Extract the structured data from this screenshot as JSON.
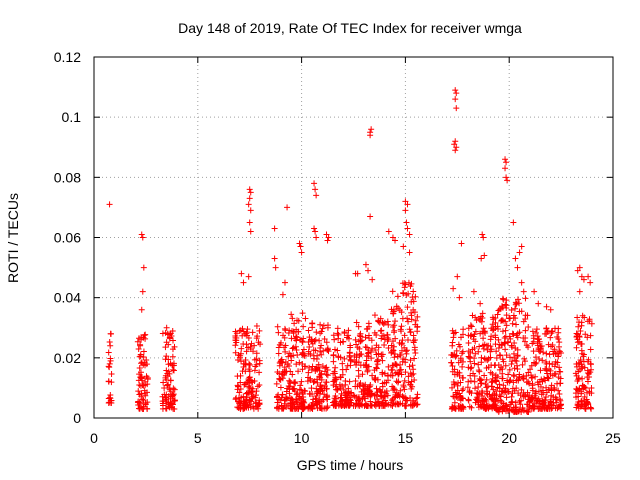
{
  "chart_data": {
    "type": "scatter",
    "title": "Day 148 of 2019, Rate Of TEC Index for receiver wmga",
    "xlabel": "GPS time / hours",
    "ylabel": "ROTI / TECUs",
    "xlim": [
      0,
      25
    ],
    "ylim": [
      0,
      0.12
    ],
    "xticks": [
      "0",
      "5",
      "10",
      "15",
      "20",
      "25"
    ],
    "yticks": [
      "0",
      "0.02",
      "0.04",
      "0.06",
      "0.08",
      "0.1",
      "0.12"
    ],
    "grid": true,
    "marker": "+",
    "color": "#ff0000",
    "clusters": [
      {
        "x": [
          0.7,
          0.85
        ],
        "y": [
          0.005,
          0.028
        ]
      },
      {
        "x": [
          2.1,
          2.6
        ],
        "y": [
          0.003,
          0.028
        ]
      },
      {
        "x": [
          3.3,
          3.9
        ],
        "y": [
          0.003,
          0.03
        ]
      },
      {
        "x": [
          6.8,
          8.0
        ],
        "y": [
          0.003,
          0.032
        ]
      },
      {
        "x": [
          8.8,
          10.2
        ],
        "y": [
          0.003,
          0.035
        ]
      },
      {
        "x": [
          10.3,
          11.3
        ],
        "y": [
          0.003,
          0.033
        ]
      },
      {
        "x": [
          11.5,
          12.4
        ],
        "y": [
          0.004,
          0.03
        ]
      },
      {
        "x": [
          12.5,
          13.4
        ],
        "y": [
          0.004,
          0.032
        ]
      },
      {
        "x": [
          13.5,
          14.2
        ],
        "y": [
          0.004,
          0.035
        ]
      },
      {
        "x": [
          14.3,
          15.6
        ],
        "y": [
          0.004,
          0.045
        ]
      },
      {
        "x": [
          17.2,
          17.8
        ],
        "y": [
          0.003,
          0.03
        ]
      },
      {
        "x": [
          18.0,
          19.4
        ],
        "y": [
          0.003,
          0.035
        ]
      },
      {
        "x": [
          19.4,
          21.0
        ],
        "y": [
          0.002,
          0.04
        ]
      },
      {
        "x": [
          21.0,
          22.5
        ],
        "y": [
          0.003,
          0.03
        ]
      },
      {
        "x": [
          23.2,
          24.0
        ],
        "y": [
          0.003,
          0.035
        ]
      }
    ],
    "points": [
      [
        0.75,
        0.071
      ],
      [
        0.8,
        0.028
      ],
      [
        0.78,
        0.024
      ],
      [
        0.8,
        0.019
      ],
      [
        2.3,
        0.061
      ],
      [
        2.35,
        0.06
      ],
      [
        2.4,
        0.05
      ],
      [
        2.35,
        0.042
      ],
      [
        2.3,
        0.036
      ],
      [
        3.5,
        0.03
      ],
      [
        3.55,
        0.028
      ],
      [
        7.1,
        0.048
      ],
      [
        7.2,
        0.045
      ],
      [
        7.5,
        0.076
      ],
      [
        7.55,
        0.075
      ],
      [
        7.5,
        0.073
      ],
      [
        7.45,
        0.071
      ],
      [
        7.55,
        0.069
      ],
      [
        7.5,
        0.065
      ],
      [
        7.55,
        0.062
      ],
      [
        7.45,
        0.047
      ],
      [
        8.7,
        0.063
      ],
      [
        8.7,
        0.053
      ],
      [
        8.75,
        0.05
      ],
      [
        9.3,
        0.07
      ],
      [
        9.2,
        0.045
      ],
      [
        9.1,
        0.041
      ],
      [
        9.9,
        0.058
      ],
      [
        9.95,
        0.057
      ],
      [
        10.0,
        0.055
      ],
      [
        10.6,
        0.078
      ],
      [
        10.65,
        0.076
      ],
      [
        10.7,
        0.074
      ],
      [
        10.6,
        0.063
      ],
      [
        10.65,
        0.062
      ],
      [
        10.7,
        0.06
      ],
      [
        11.2,
        0.061
      ],
      [
        11.3,
        0.06
      ],
      [
        11.25,
        0.059
      ],
      [
        12.6,
        0.048
      ],
      [
        12.7,
        0.048
      ],
      [
        13.3,
        0.095
      ],
      [
        13.35,
        0.096
      ],
      [
        13.3,
        0.094
      ],
      [
        13.3,
        0.067
      ],
      [
        13.1,
        0.051
      ],
      [
        13.2,
        0.049
      ],
      [
        13.4,
        0.046
      ],
      [
        14.2,
        0.062
      ],
      [
        14.4,
        0.06
      ],
      [
        14.5,
        0.059
      ],
      [
        15.0,
        0.072
      ],
      [
        15.1,
        0.071
      ],
      [
        15.0,
        0.069
      ],
      [
        15.05,
        0.065
      ],
      [
        15.1,
        0.063
      ],
      [
        15.2,
        0.061
      ],
      [
        14.9,
        0.057
      ],
      [
        15.2,
        0.055
      ],
      [
        17.4,
        0.109
      ],
      [
        17.45,
        0.108
      ],
      [
        17.4,
        0.106
      ],
      [
        17.45,
        0.103
      ],
      [
        17.4,
        0.092
      ],
      [
        17.35,
        0.091
      ],
      [
        17.45,
        0.09
      ],
      [
        17.4,
        0.089
      ],
      [
        17.7,
        0.058
      ],
      [
        17.5,
        0.047
      ],
      [
        17.3,
        0.043
      ],
      [
        17.6,
        0.04
      ],
      [
        18.7,
        0.061
      ],
      [
        18.75,
        0.06
      ],
      [
        18.8,
        0.054
      ],
      [
        18.65,
        0.053
      ],
      [
        18.3,
        0.042
      ],
      [
        18.6,
        0.038
      ],
      [
        19.8,
        0.086
      ],
      [
        19.85,
        0.085
      ],
      [
        19.8,
        0.083
      ],
      [
        19.85,
        0.08
      ],
      [
        19.9,
        0.079
      ],
      [
        20.2,
        0.065
      ],
      [
        20.3,
        0.053
      ],
      [
        20.5,
        0.055
      ],
      [
        20.6,
        0.057
      ],
      [
        20.4,
        0.05
      ],
      [
        20.6,
        0.045
      ],
      [
        20.7,
        0.042
      ],
      [
        21.2,
        0.042
      ],
      [
        21.4,
        0.038
      ],
      [
        21.8,
        0.037
      ],
      [
        22.0,
        0.036
      ],
      [
        23.3,
        0.049
      ],
      [
        23.4,
        0.05
      ],
      [
        23.5,
        0.047
      ],
      [
        23.6,
        0.046
      ],
      [
        23.8,
        0.047
      ],
      [
        23.9,
        0.045
      ],
      [
        23.4,
        0.042
      ]
    ]
  }
}
